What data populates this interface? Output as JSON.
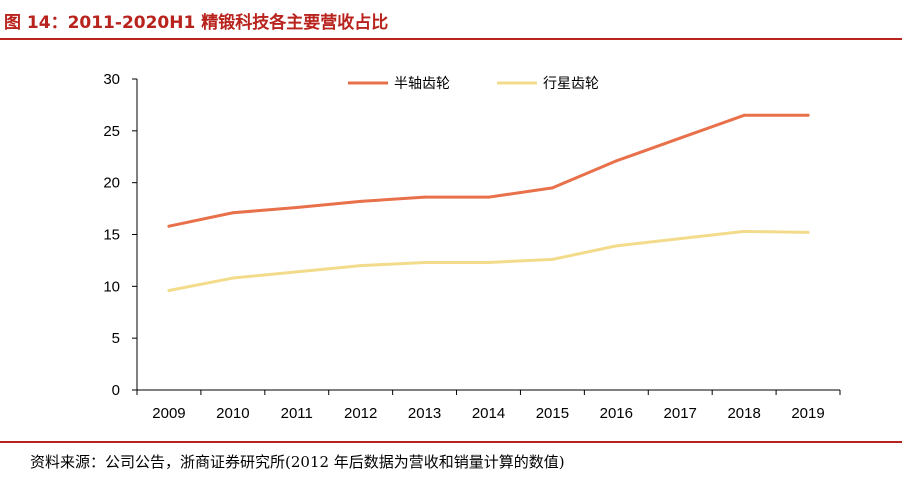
{
  "figure": {
    "title": "图 14：2011-2020H1 精锻科技各主要营收占比",
    "source": "资料来源：公司公告，浙商证券研究所(2012 年后数据为营收和销量计算的数值)"
  },
  "colors": {
    "accent": "#b8231d",
    "series1": "#e8704a",
    "series2": "#f2dc8c",
    "axis": "#000000"
  },
  "chart_data": {
    "type": "line",
    "title": "",
    "xlabel": "",
    "ylabel": "",
    "x": [
      "2009",
      "2010",
      "2011",
      "2012",
      "2013",
      "2014",
      "2015",
      "2016",
      "2017",
      "2018",
      "2019"
    ],
    "ylim": [
      0,
      30
    ],
    "yticks": [
      0,
      5,
      10,
      15,
      20,
      25,
      30
    ],
    "grid": false,
    "legend_position": "top-right",
    "series": [
      {
        "name": "半轴齿轮",
        "color": "#e8704a",
        "values": [
          15.8,
          17.1,
          17.6,
          18.2,
          18.6,
          18.6,
          19.5,
          22.1,
          24.3,
          26.5,
          26.5
        ]
      },
      {
        "name": "行星齿轮",
        "color": "#f2dc8c",
        "values": [
          9.6,
          10.8,
          11.4,
          12.0,
          12.3,
          12.3,
          12.6,
          13.9,
          14.6,
          15.3,
          15.2
        ]
      }
    ]
  }
}
